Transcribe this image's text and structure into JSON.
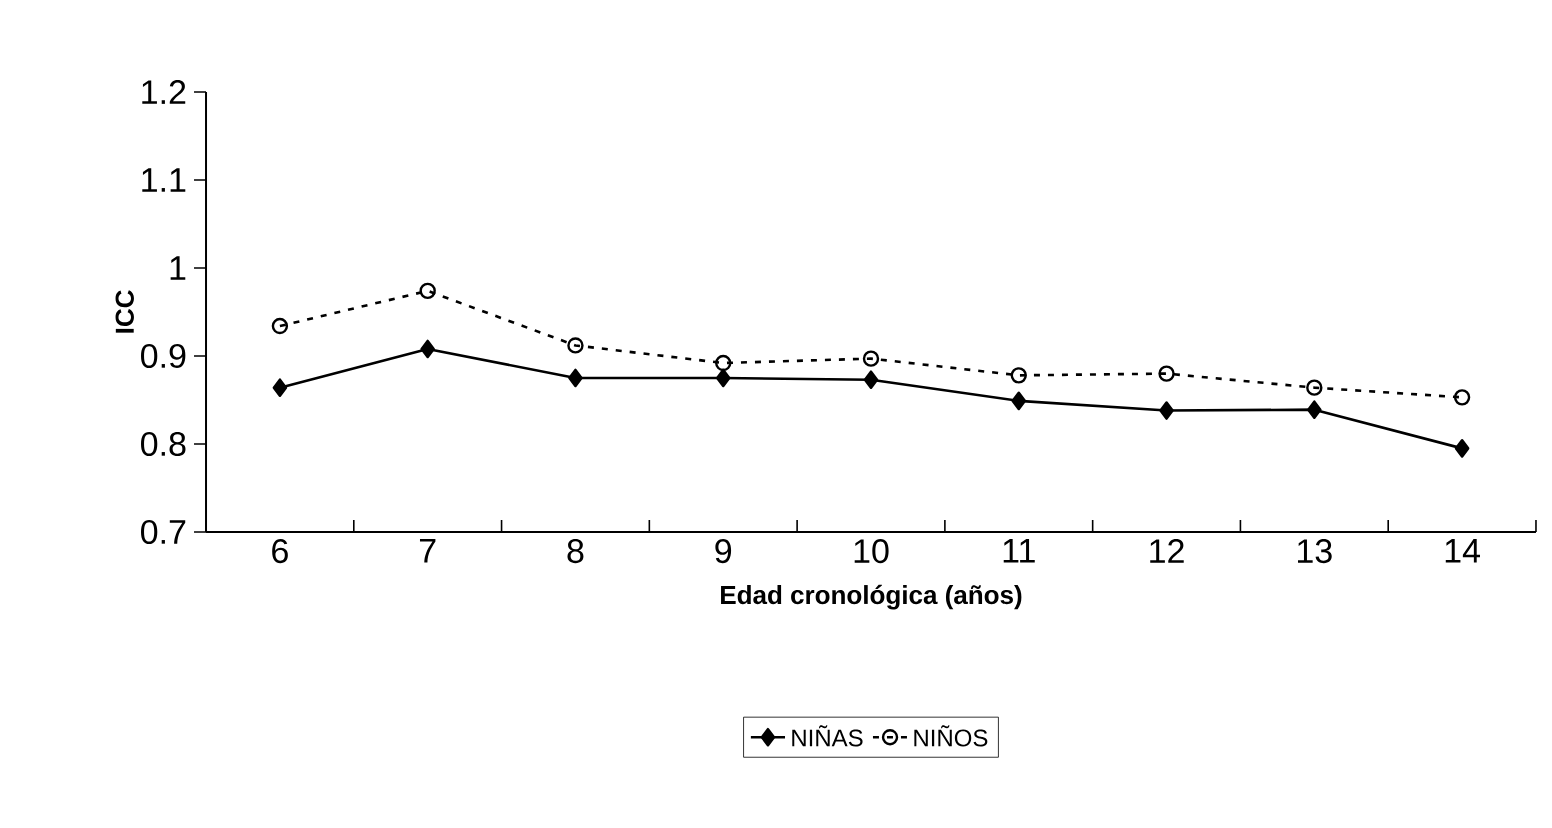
{
  "chart_data": {
    "type": "line",
    "xlabel": "Edad cronológica (años)",
    "ylabel": "ICC",
    "categories": [
      "6",
      "7",
      "8",
      "9",
      "10",
      "11",
      "12",
      "13",
      "14"
    ],
    "series": [
      {
        "name": "NIÑAS",
        "color": "#000000",
        "marker": "diamond",
        "line_style": "solid",
        "values": [
          0.864,
          0.908,
          0.875,
          0.875,
          0.873,
          0.849,
          0.838,
          0.839,
          0.795
        ]
      },
      {
        "name": "NIÑOS",
        "color": "#000000",
        "marker": "circle",
        "line_style": "dotted",
        "values": [
          0.934,
          0.974,
          0.912,
          0.892,
          0.897,
          0.878,
          0.88,
          0.864,
          0.853
        ]
      }
    ],
    "ylim": [
      0.7,
      1.2
    ],
    "yticks": [
      0.7,
      0.8,
      0.9,
      1,
      1.1,
      1.2
    ],
    "grid": false,
    "legend": "bottom"
  }
}
